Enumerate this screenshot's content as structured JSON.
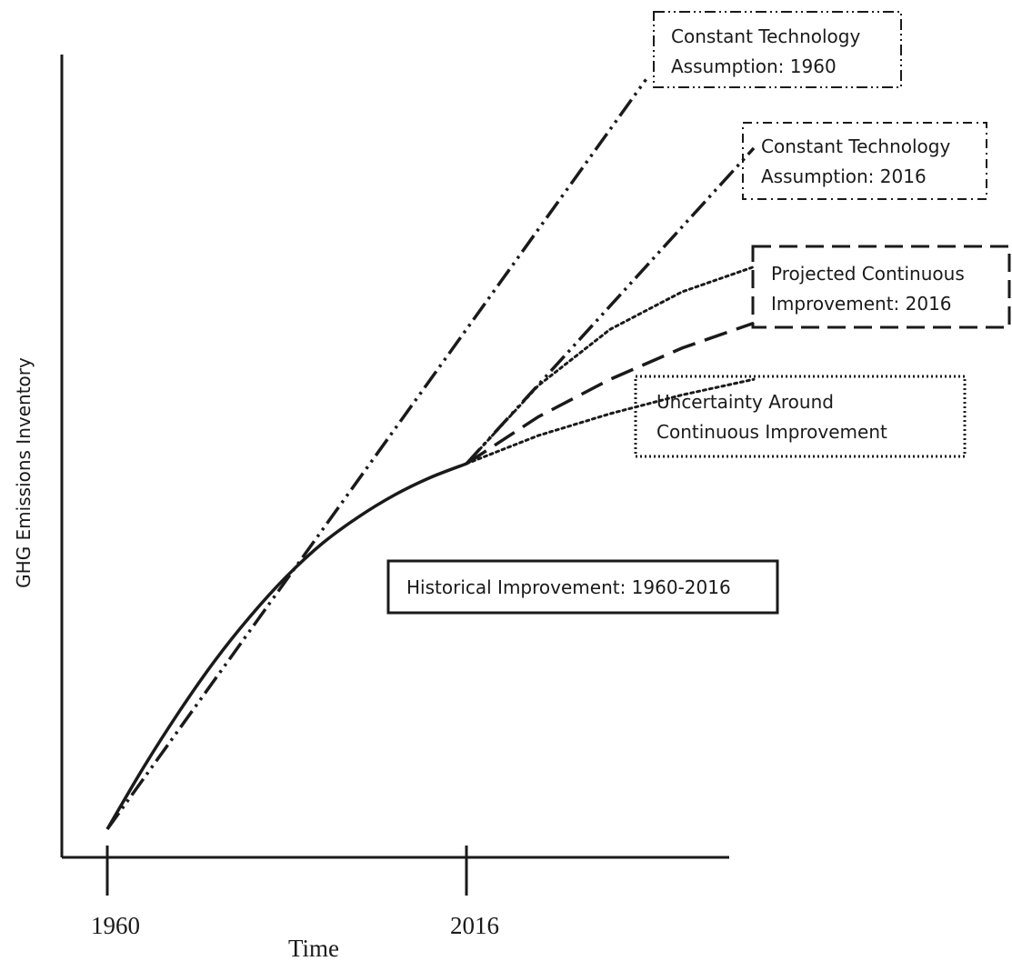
{
  "chart_data": {
    "type": "line",
    "title": "",
    "xlabel": "Time",
    "ylabel": "GHG Emissions Inventory",
    "x_ticks": [
      "1960",
      "2016"
    ],
    "x_tick_values": [
      0,
      1
    ],
    "xlim": [
      0,
      1.8
    ],
    "ylim": [
      0,
      1.2
    ],
    "grid": false,
    "series": [
      {
        "name": "Historical Improvement: 1960-2016",
        "style": "solid",
        "x": [
          0.0,
          0.1,
          0.2,
          0.3,
          0.4,
          0.5,
          0.6,
          0.7,
          0.8,
          0.9,
          1.0
        ],
        "y": [
          0.0,
          0.098,
          0.188,
          0.27,
          0.342,
          0.405,
          0.458,
          0.5,
          0.535,
          0.563,
          0.585
        ]
      },
      {
        "name": "Constant Technology Assumption: 1960",
        "style": "dash-dot-dot",
        "x": [
          0.0,
          1.5
        ],
        "y": [
          0.0,
          1.2
        ]
      },
      {
        "name": "Constant Technology Assumption: 2016",
        "style": "dash-dot-dot",
        "x": [
          1.0,
          1.8
        ],
        "y": [
          0.585,
          1.09
        ]
      },
      {
        "name": "Projected Continuous Improvement: 2016",
        "style": "dashed",
        "x": [
          1.0,
          1.2,
          1.4,
          1.6,
          1.8
        ],
        "y": [
          0.585,
          0.66,
          0.72,
          0.77,
          0.81
        ]
      },
      {
        "name": "Uncertainty Around Continuous Improvement",
        "style": "dotted",
        "x": [
          1.0,
          1.2,
          1.4,
          1.6,
          1.8
        ],
        "y": [
          0.585,
          0.71,
          0.8,
          0.86,
          0.9
        ]
      },
      {
        "name": "Uncertainty Around Continuous Improvement",
        "style": "dotted",
        "x": [
          1.0,
          1.2,
          1.4,
          1.6,
          1.8
        ],
        "y": [
          0.585,
          0.63,
          0.665,
          0.695,
          0.72
        ]
      }
    ],
    "annotations": [
      {
        "lines": [
          "Constant Technology",
          "Assumption: 1960"
        ],
        "border": "dash-dot-dot"
      },
      {
        "lines": [
          "Constant Technology",
          "Assumption: 2016"
        ],
        "border": "dash-dot"
      },
      {
        "lines": [
          "Projected Continuous",
          "Improvement: 2016"
        ],
        "border": "dashed"
      },
      {
        "lines": [
          "Uncertainty Around",
          "Continuous Improvement"
        ],
        "border": "dotted"
      },
      {
        "lines": [
          "Historical Improvement: 1960-2016"
        ],
        "border": "solid"
      }
    ]
  }
}
